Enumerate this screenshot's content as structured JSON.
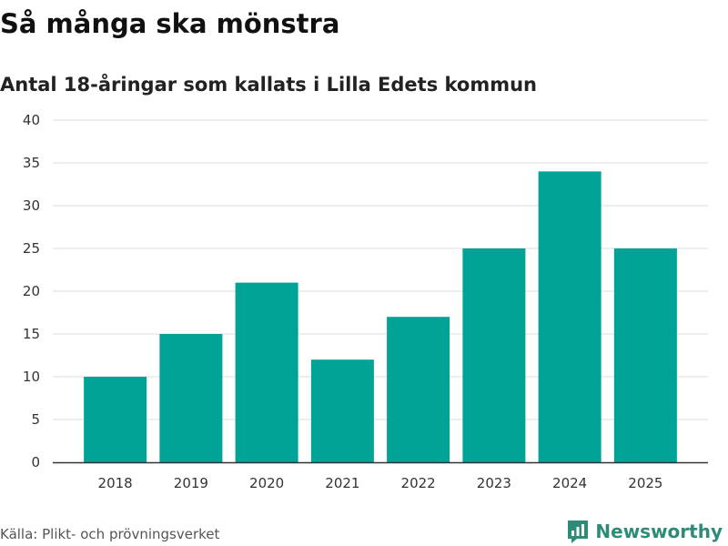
{
  "chart_data": {
    "type": "bar",
    "title": "Så många ska mönstra",
    "subtitle": "Antal 18-åringar som kallats i Lilla Edets kommun",
    "categories": [
      "2018",
      "2019",
      "2020",
      "2021",
      "2022",
      "2023",
      "2024",
      "2025"
    ],
    "values": [
      10,
      15,
      21,
      12,
      17,
      25,
      34,
      25
    ],
    "ylim": [
      0,
      40
    ],
    "yticks": [
      0,
      5,
      10,
      15,
      20,
      25,
      30,
      35,
      40
    ],
    "grid": true,
    "xlabel": "",
    "ylabel": "",
    "bar_color": "#00a396"
  },
  "footer": {
    "source": "Källa: Plikt- och prövningsverket",
    "brand": "Newsworthy",
    "brand_color": "#2e8b78",
    "brand_icon": "bar-chart-logo-icon"
  }
}
